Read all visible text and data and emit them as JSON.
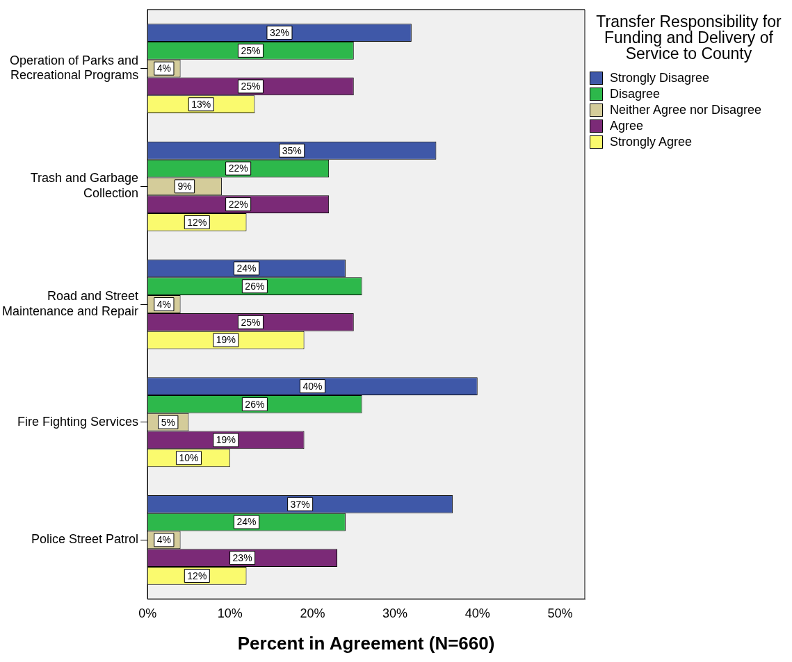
{
  "chart_data": {
    "type": "bar",
    "orientation": "horizontal",
    "xlabel": "Percent in Agreement (N=660)",
    "legend_title": "Transfer Responsibility for Funding and Delivery of Service to County",
    "legend": "right",
    "grid": false,
    "categories": [
      "Operation of Parks and Recreational Programs",
      "Trash and Garbage Collection",
      "Road and Street Maintenance and Repair",
      "Fire Fighting Services",
      "Police Street Patrol"
    ],
    "xlim": [
      0,
      53
    ],
    "xticks": [
      {
        "value": 0,
        "label": "0%"
      },
      {
        "value": 10,
        "label": "10%"
      },
      {
        "value": 20,
        "label": "20%"
      },
      {
        "value": 30,
        "label": "30%"
      },
      {
        "value": 40,
        "label": "40%"
      },
      {
        "value": 50,
        "label": "50%"
      }
    ],
    "series": [
      {
        "name": "Strongly Disagree",
        "color": "#3f58a8",
        "values": [
          32,
          35,
          24,
          40,
          37
        ],
        "value_labels": [
          "32%",
          "35%",
          "24%",
          "40%",
          "37%"
        ]
      },
      {
        "name": "Disagree",
        "color": "#2db84b",
        "values": [
          25,
          22,
          26,
          26,
          24
        ],
        "value_labels": [
          "25%",
          "22%",
          "26%",
          "26%",
          "24%"
        ]
      },
      {
        "name": "Neither Agree nor Disagree",
        "color": "#d4cc9a",
        "values": [
          4,
          9,
          4,
          5,
          4
        ],
        "value_labels": [
          "4%",
          "9%",
          "4%",
          "5%",
          "4%"
        ]
      },
      {
        "name": "Agree",
        "color": "#7b2a77",
        "values": [
          25,
          22,
          25,
          19,
          23
        ],
        "value_labels": [
          "25%",
          "22%",
          "25%",
          "19%",
          "23%"
        ]
      },
      {
        "name": "Strongly Agree",
        "color": "#fafa6e",
        "values": [
          13,
          12,
          19,
          10,
          12
        ],
        "value_labels": [
          "13%",
          "12%",
          "19%",
          "10%",
          "12%"
        ]
      }
    ]
  }
}
